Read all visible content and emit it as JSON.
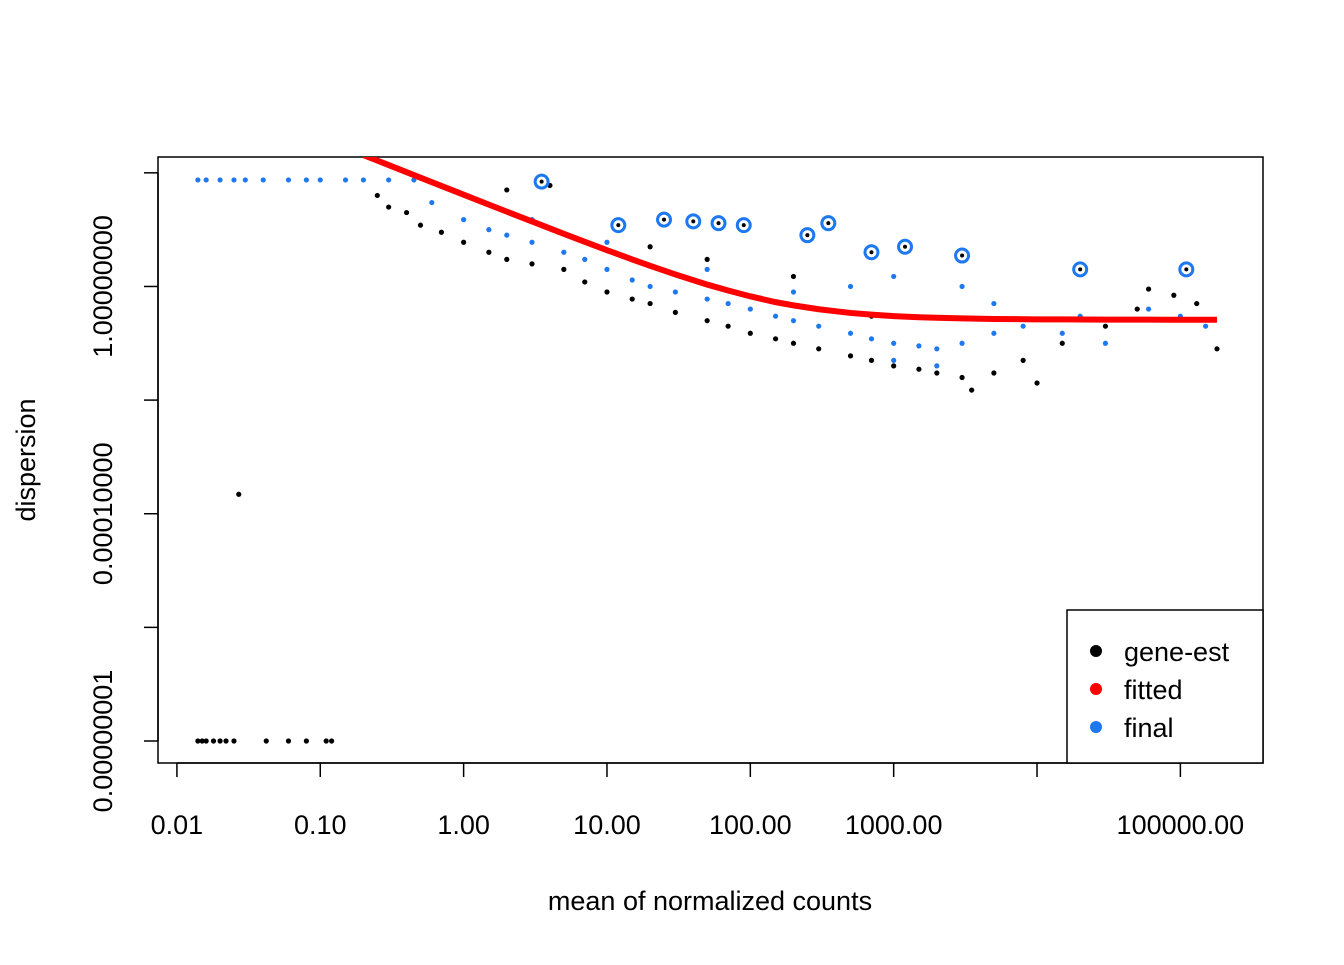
{
  "chart_data": {
    "type": "scatter",
    "x_label": "mean of normalized counts",
    "y_label": "dispersion",
    "log_x": true,
    "log_y": true,
    "xlim": [
      0.00738,
      377000
    ],
    "ylim": [
      4.1e-09,
      190
    ],
    "xticks": [
      {
        "value": 0.01,
        "label": "0.01"
      },
      {
        "value": 0.1,
        "label": "0.10"
      },
      {
        "value": 1,
        "label": "1.00"
      },
      {
        "value": 10,
        "label": "10.00"
      },
      {
        "value": 100,
        "label": "100.00"
      },
      {
        "value": 1000,
        "label": "1000.00"
      },
      {
        "value": 100000,
        "label": "100000.00"
      }
    ],
    "xticks_minor": [
      10000
    ],
    "yticks": [
      {
        "value": 1e-08,
        "label": "0.00000001"
      },
      {
        "value": 0.0001,
        "label": "0.00010000"
      },
      {
        "value": 1,
        "label": "1.00000000"
      }
    ],
    "yticks_minor": [
      1e-06,
      0.01,
      100
    ],
    "legend_position": "bottom-right",
    "series": [
      {
        "name": "gene-est",
        "color": "#000000",
        "x": [
          0.014,
          0.015,
          0.016,
          0.018,
          0.02,
          0.022,
          0.025,
          0.042,
          0.06,
          0.08,
          0.11,
          0.12,
          0.027,
          0.25,
          0.3,
          0.4,
          0.5,
          0.7,
          1,
          1.5,
          2,
          2,
          3,
          4,
          5,
          7,
          10,
          15,
          20,
          30,
          50,
          70,
          100,
          150,
          200,
          300,
          500,
          700,
          1000,
          1500,
          2000,
          3000,
          3500,
          5000,
          8000,
          15000,
          30000,
          50000,
          60000,
          90000,
          130000,
          180000,
          10000,
          700,
          200,
          50,
          20
        ],
        "values": [
          1e-08,
          1e-08,
          1e-08,
          1e-08,
          1e-08,
          1e-08,
          1e-08,
          1e-08,
          1e-08,
          1e-08,
          1e-08,
          1e-08,
          0.00022,
          40,
          25,
          20,
          12,
          9,
          6,
          4,
          50,
          3,
          2.5,
          60,
          2,
          1.2,
          0.8,
          0.6,
          0.5,
          0.35,
          0.25,
          0.2,
          0.15,
          0.12,
          0.1,
          0.08,
          0.06,
          0.05,
          0.04,
          0.035,
          0.03,
          0.025,
          0.015,
          0.03,
          0.05,
          0.1,
          0.2,
          0.4,
          0.9,
          0.7,
          0.5,
          0.08,
          0.02,
          0.3,
          1.5,
          3,
          5
        ]
      },
      {
        "name": "fitted",
        "color": "#ff0000",
        "x": [
          0.2,
          0.3,
          0.5,
          0.7,
          1,
          1.5,
          2,
          3,
          5,
          7,
          10,
          15,
          20,
          30,
          50,
          70,
          100,
          150,
          200,
          300,
          500,
          700,
          1000,
          1500,
          2000,
          3000,
          5000,
          7000,
          10000,
          15000,
          20000,
          30000,
          40000,
          60000,
          80000,
          100000,
          130000,
          180000
        ],
        "values": [
          205.26,
          136.93,
          82.26,
          58.83,
          41.26,
          27.59,
          20.76,
          13.93,
          8.46,
          6.12,
          4.36,
          2.99,
          2.31,
          1.63,
          1.08,
          0.85,
          0.67,
          0.53,
          0.465,
          0.397,
          0.342,
          0.319,
          0.301,
          0.287,
          0.281,
          0.274,
          0.268,
          0.266,
          0.264,
          0.263,
          0.262,
          0.261,
          0.261,
          0.261,
          0.26,
          0.26,
          0.26,
          0.26
        ]
      },
      {
        "name": "final",
        "color": "#1e78f0",
        "x": [
          0.014,
          0.016,
          0.02,
          0.025,
          0.03,
          0.04,
          0.06,
          0.08,
          0.1,
          0.15,
          0.2,
          0.3,
          0.45,
          0.6,
          1,
          1.5,
          2,
          3,
          5,
          7,
          10,
          15,
          20,
          30,
          50,
          70,
          100,
          150,
          200,
          300,
          500,
          700,
          1000,
          1500,
          2000,
          3000,
          5000,
          8000,
          15000,
          30000,
          60000,
          100000,
          150000,
          500,
          1000,
          3000,
          200,
          50,
          10,
          3,
          1000,
          2000,
          20000,
          5000
        ],
        "values": [
          75,
          75,
          75,
          75,
          75,
          75,
          75,
          75,
          75,
          75,
          75,
          75,
          75,
          30,
          15,
          10,
          8,
          6,
          4,
          3,
          2,
          1.3,
          1,
          0.8,
          0.6,
          0.5,
          0.4,
          0.3,
          0.25,
          0.2,
          0.15,
          0.12,
          0.1,
          0.09,
          0.08,
          0.1,
          0.15,
          0.2,
          0.15,
          0.1,
          0.4,
          0.3,
          0.2,
          1,
          1.5,
          1,
          0.8,
          2,
          6,
          15,
          0.05,
          0.04,
          0.3,
          0.5
        ],
        "outlier_x": [
          3.5,
          12,
          25,
          40,
          60,
          90,
          250,
          350,
          700,
          1200,
          3000,
          20000,
          110000
        ],
        "outlier_values": [
          70,
          12,
          15,
          14,
          13,
          12,
          8,
          13,
          4,
          5,
          3.5,
          2,
          2
        ]
      }
    ]
  }
}
